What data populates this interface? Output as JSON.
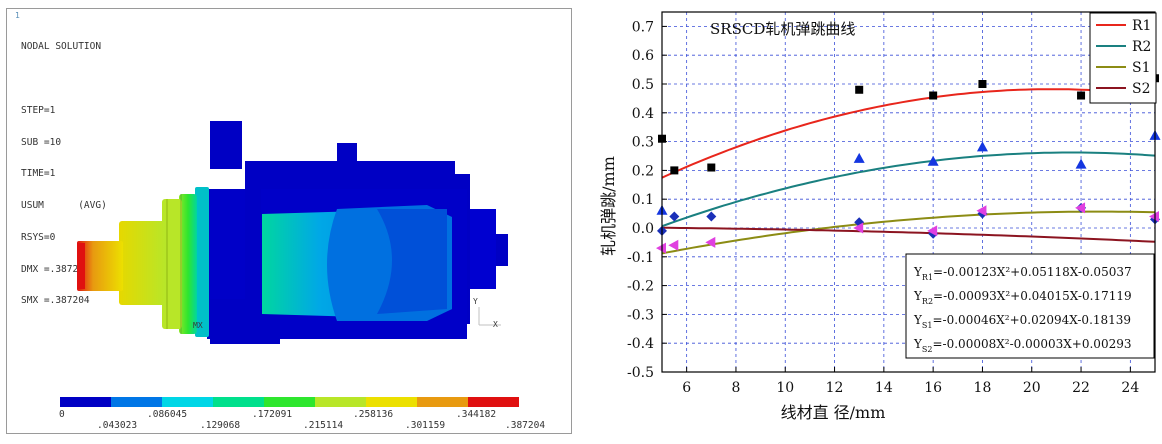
{
  "fea_panel": {
    "corner_number": "1",
    "info_lines": [
      "NODAL SOLUTION",
      "",
      "STEP=1",
      "SUB =10",
      "TIME=1",
      "USUM      (AVG)",
      "RSYS=0",
      "DMX =.387204",
      "SMX =.387204"
    ],
    "mx_label": "MX",
    "triad": {
      "x": "X",
      "y": "Y"
    },
    "colorbar": {
      "colors": [
        "#0000c4",
        "#0076e6",
        "#00d6e6",
        "#00e08c",
        "#2ee62e",
        "#b8e628",
        "#ece000",
        "#e89a10",
        "#e01010"
      ],
      "labels_top": [
        "0",
        ".086045",
        ".172091",
        ".258136",
        ".344182"
      ],
      "labels_bottom": [
        ".043023",
        ".129068",
        ".215114",
        ".301159",
        ".387204"
      ]
    }
  },
  "chart_data": {
    "type": "scatter",
    "title": "SRSCD轧机弹跳曲线",
    "xlabel": "线材直 径/mm",
    "ylabel": "轧机弹跳/mm",
    "xlim": [
      5,
      25
    ],
    "ylim": [
      -0.5,
      0.75
    ],
    "xticks": [
      6,
      8,
      10,
      12,
      14,
      16,
      18,
      20,
      22,
      24
    ],
    "yticks": [
      "0.7",
      "0.6",
      "0.5",
      "0.4",
      "0.3",
      "0.2",
      "0.1",
      "0.0",
      "-0.1",
      "-0.2",
      "-0.3",
      "-0.4",
      "-0.5"
    ],
    "grid": true,
    "legend_position": "top-right",
    "series": [
      {
        "name": "R1",
        "color": "#e8261c",
        "marker": "square",
        "marker_color": "#000000",
        "coef": [
          -0.00123,
          0.05118,
          -0.05037
        ],
        "points": [
          [
            5,
            0.31
          ],
          [
            5.5,
            0.2
          ],
          [
            7,
            0.21
          ],
          [
            13,
            0.48
          ],
          [
            16,
            0.46
          ],
          [
            18,
            0.5
          ],
          [
            22,
            0.46
          ],
          [
            25,
            0.52
          ]
        ]
      },
      {
        "name": "R2",
        "color": "#1a8080",
        "marker": "triangle-up",
        "marker_color": "#1436e0",
        "coef": [
          -0.00093,
          0.04015,
          -0.17119
        ],
        "points": [
          [
            5,
            0.06
          ],
          [
            13,
            0.24
          ],
          [
            16,
            0.23
          ],
          [
            18,
            0.28
          ],
          [
            22,
            0.22
          ],
          [
            25,
            0.32
          ]
        ]
      },
      {
        "name": "S1",
        "color": "#8c8c14",
        "marker": "diamond",
        "marker_color": "#1a30b8",
        "coef": [
          -0.00046,
          0.02094,
          -0.18139
        ],
        "points": [
          [
            5,
            -0.01
          ],
          [
            5.5,
            0.04
          ],
          [
            7,
            0.04
          ],
          [
            13,
            0.02
          ],
          [
            16,
            -0.02
          ],
          [
            18,
            0.05
          ],
          [
            22,
            0.07
          ],
          [
            25,
            0.03
          ]
        ]
      },
      {
        "name": "S2",
        "color": "#8c1420",
        "marker": "triangle-left",
        "marker_color": "#e040e0",
        "coef": [
          -8e-05,
          -3e-05,
          0.00293
        ],
        "points": [
          [
            5,
            -0.07
          ],
          [
            5.5,
            -0.06
          ],
          [
            7,
            -0.05
          ],
          [
            13,
            0.0
          ],
          [
            16,
            -0.01
          ],
          [
            18,
            0.06
          ],
          [
            22,
            0.07
          ],
          [
            25,
            0.04
          ]
        ]
      }
    ],
    "equations": [
      {
        "sub": "R1",
        "body": "=-0.00123X²+0.05118X-0.05037"
      },
      {
        "sub": "R2",
        "body": "=-0.00093X²+0.04015X-0.17119"
      },
      {
        "sub": "S1",
        "body": "=-0.00046X²+0.02094X-0.18139"
      },
      {
        "sub": "S2",
        "body": "=-0.00008X²-0.00003X+0.00293"
      }
    ]
  }
}
